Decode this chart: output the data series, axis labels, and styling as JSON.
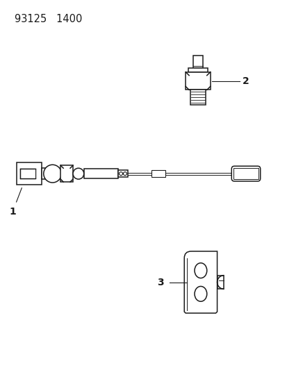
{
  "title_text": "93125   1400",
  "bg_color": "#ffffff",
  "line_color": "#1a1a1a",
  "fig_width": 4.14,
  "fig_height": 5.33,
  "dpi": 100,
  "label1": "1",
  "label2": "2",
  "label3": "3",
  "title_fontsize": 10.5
}
